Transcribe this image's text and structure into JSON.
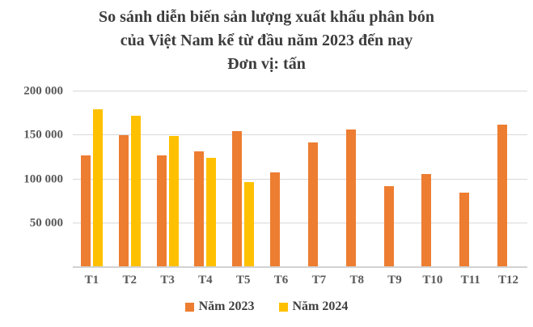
{
  "chart_data": {
    "type": "bar",
    "title_lines": [
      "So sánh diễn biến sản lượng xuất khẩu phân bón",
      "của Việt Nam kể từ đầu năm 2023 đến nay",
      "Đơn vị: tấn"
    ],
    "categories": [
      "T1",
      "T2",
      "T3",
      "T4",
      "T5",
      "T6",
      "T7",
      "T8",
      "T9",
      "T10",
      "T11",
      "T12"
    ],
    "series": [
      {
        "name": "Năm 2023",
        "color": "#ED7D31",
        "values": [
          127000,
          150000,
          127000,
          132000,
          155000,
          108000,
          142000,
          157000,
          92000,
          106000,
          85000,
          162000
        ]
      },
      {
        "name": "Năm 2024",
        "color": "#FFC000",
        "values": [
          180000,
          172000,
          149000,
          124000,
          97000,
          null,
          null,
          null,
          null,
          null,
          null,
          null
        ]
      }
    ],
    "y_axis": {
      "min": 0,
      "max": 200000,
      "ticks": [
        {
          "value": 50000,
          "label": "50 000"
        },
        {
          "value": 100000,
          "label": "100 000"
        },
        {
          "value": 150000,
          "label": "150 000"
        },
        {
          "value": 200000,
          "label": "200 000"
        }
      ]
    },
    "grid": true,
    "legend_position": "bottom"
  },
  "colors": {
    "gridline": "#d9d9d9",
    "baseline": "#d2d2d2",
    "axis_text": "#595959",
    "title_text": "#3c3c3c"
  }
}
